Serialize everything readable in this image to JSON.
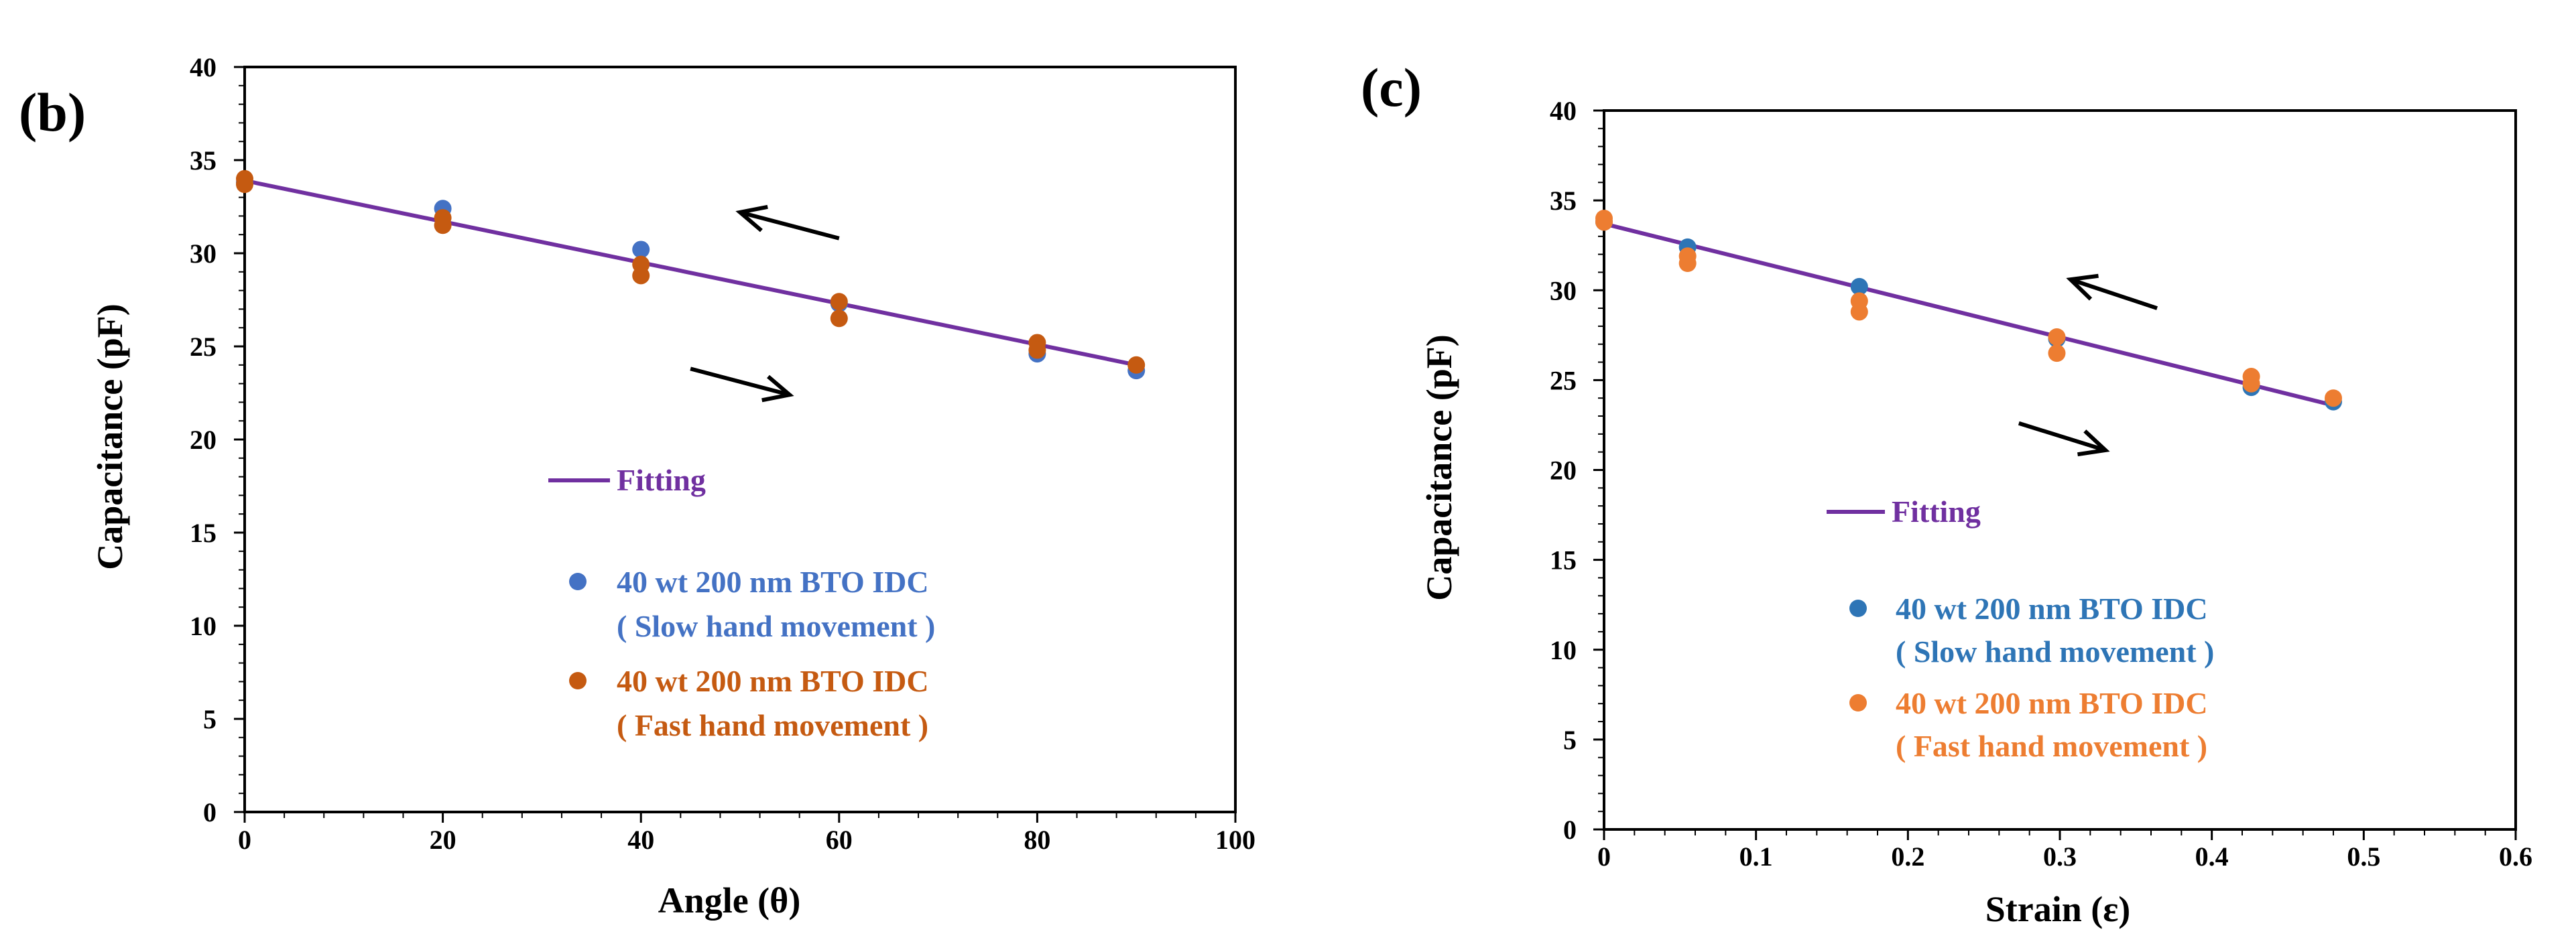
{
  "chart_data": [
    {
      "type": "scatter",
      "panel_label": "(b)",
      "xlabel": "Angle (θ)",
      "ylabel": "Capacitance (pF)",
      "xlim": [
        0,
        100
      ],
      "ylim": [
        0,
        40
      ],
      "xticks": [
        0,
        20,
        40,
        60,
        80,
        100
      ],
      "yticks": [
        0,
        5,
        10,
        15,
        20,
        25,
        30,
        35,
        40
      ],
      "grid": false,
      "legend_position": "center-left",
      "colors": {
        "fit": "#7030A0",
        "slow": "#4472C4",
        "fast": "#C55A11",
        "arrow": "#000000"
      },
      "fit": {
        "name": "Fitting",
        "x": [
          0,
          90
        ],
        "y": [
          33.9,
          24.0
        ]
      },
      "series": [
        {
          "name": "40 wt 200 nm BTO IDC",
          "subname": "( Slow hand movement )",
          "x": [
            0,
            20,
            40,
            60,
            80,
            90
          ],
          "y": [
            33.8,
            32.4,
            30.2,
            27.3,
            24.6,
            23.7
          ]
        },
        {
          "name": "40 wt 200 nm BTO IDC",
          "subname": "( Fast hand movement )",
          "x": [
            0,
            0,
            20,
            20,
            40,
            40,
            60,
            60,
            80,
            80,
            90
          ],
          "y": [
            34.0,
            33.7,
            31.9,
            31.5,
            29.4,
            28.8,
            27.4,
            26.5,
            25.2,
            24.8,
            24.0
          ]
        }
      ],
      "arrows": [
        {
          "direction": "decreasing",
          "x1": 60,
          "y1": 30.8,
          "x2": 50,
          "y2": 32.2
        },
        {
          "direction": "increasing",
          "x1": 45,
          "y1": 23.8,
          "x2": 55,
          "y2": 22.4
        }
      ]
    },
    {
      "type": "scatter",
      "panel_label": "(c)",
      "xlabel": "Strain (ε)",
      "ylabel": "Capacitance (pF)",
      "xlim": [
        0,
        0.6
      ],
      "ylim": [
        0,
        40
      ],
      "xticks": [
        "0",
        "0.1",
        "0.2",
        "0.3",
        "0.4",
        "0.5",
        "0.6"
      ],
      "yticks": [
        0,
        5,
        10,
        15,
        20,
        25,
        30,
        35,
        40
      ],
      "grid": false,
      "legend_position": "center-left",
      "colors": {
        "fit": "#7030A0",
        "slow": "#2E75B6",
        "fast": "#ED7D31",
        "arrow": "#000000"
      },
      "fit": {
        "name": "Fitting",
        "x": [
          0,
          0.48
        ],
        "y": [
          33.7,
          23.6
        ]
      },
      "series": [
        {
          "name": "40 wt 200 nm BTO IDC",
          "subname": "( Slow hand movement )",
          "x": [
            0,
            0.055,
            0.168,
            0.298,
            0.426,
            0.48
          ],
          "y": [
            33.8,
            32.4,
            30.2,
            27.3,
            24.6,
            23.8
          ]
        },
        {
          "name": "40 wt 200 nm BTO IDC",
          "subname": "( Fast hand movement )",
          "x": [
            0,
            0,
            0.055,
            0.055,
            0.168,
            0.168,
            0.298,
            0.298,
            0.426,
            0.426,
            0.48
          ],
          "y": [
            34.0,
            33.8,
            31.9,
            31.5,
            29.4,
            28.8,
            27.4,
            26.5,
            25.2,
            24.8,
            24.0
          ]
        }
      ],
      "arrows": [
        {
          "direction": "decreasing",
          "x1": 0.364,
          "y1": 29.0,
          "x2": 0.307,
          "y2": 30.6
        },
        {
          "direction": "increasing",
          "x1": 0.273,
          "y1": 22.6,
          "x2": 0.33,
          "y2": 21.1
        }
      ]
    }
  ]
}
